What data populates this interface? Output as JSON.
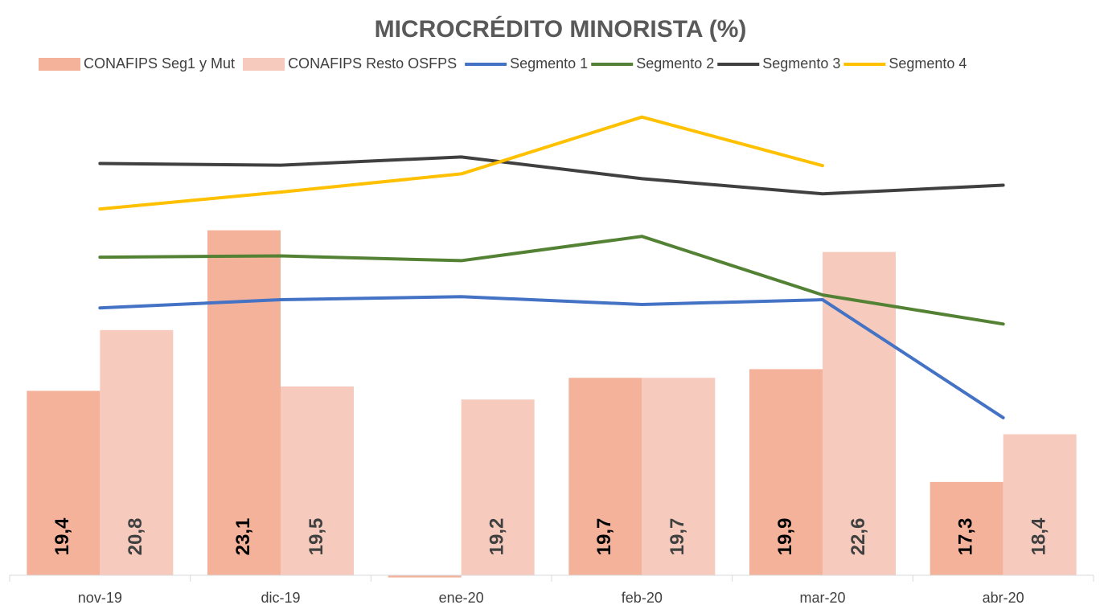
{
  "chart_data": {
    "type": "bar-line",
    "title": "MICROCRÉDITO MINORISTA (%)",
    "categories": [
      "nov-19",
      "dic-19",
      "ene-20",
      "feb-20",
      "mar-20",
      "abr-20"
    ],
    "ylim": [
      15.15,
      26.5
    ],
    "series": [
      {
        "name": "CONAFIPS Seg1 y Mut",
        "type": "bar",
        "color": "#f4b29b",
        "label_color": "#000000",
        "values": [
          19.4,
          23.1,
          15.1,
          19.7,
          19.9,
          17.3
        ],
        "value_labels": [
          "19,4",
          "23,1",
          null,
          "19,7",
          "19,9",
          "17,3"
        ]
      },
      {
        "name": "CONAFIPS Resto OSFPS",
        "type": "bar",
        "color": "#f6cbbd",
        "label_color": "#404040",
        "values": [
          20.8,
          19.5,
          19.2,
          19.7,
          22.6,
          18.4
        ],
        "value_labels": [
          "20,8",
          "19,5",
          "19,2",
          "19,7",
          "22,6",
          "18,4"
        ]
      },
      {
        "name": "Segmento 1",
        "type": "line",
        "color": "#4472c4",
        "values": [
          21.31,
          21.5,
          21.57,
          21.39,
          21.5,
          18.78
        ]
      },
      {
        "name": "Segmento 2",
        "type": "line",
        "color": "#548235",
        "values": [
          22.48,
          22.51,
          22.4,
          22.96,
          21.61,
          20.94
        ]
      },
      {
        "name": "Segmento 3",
        "type": "line",
        "color": "#404040",
        "values": [
          24.64,
          24.6,
          24.79,
          24.29,
          23.94,
          24.14
        ]
      },
      {
        "name": "Segmento 4",
        "type": "line",
        "color": "#ffc000",
        "values": [
          23.59,
          23.98,
          24.4,
          25.71,
          24.59,
          null
        ]
      }
    ]
  }
}
